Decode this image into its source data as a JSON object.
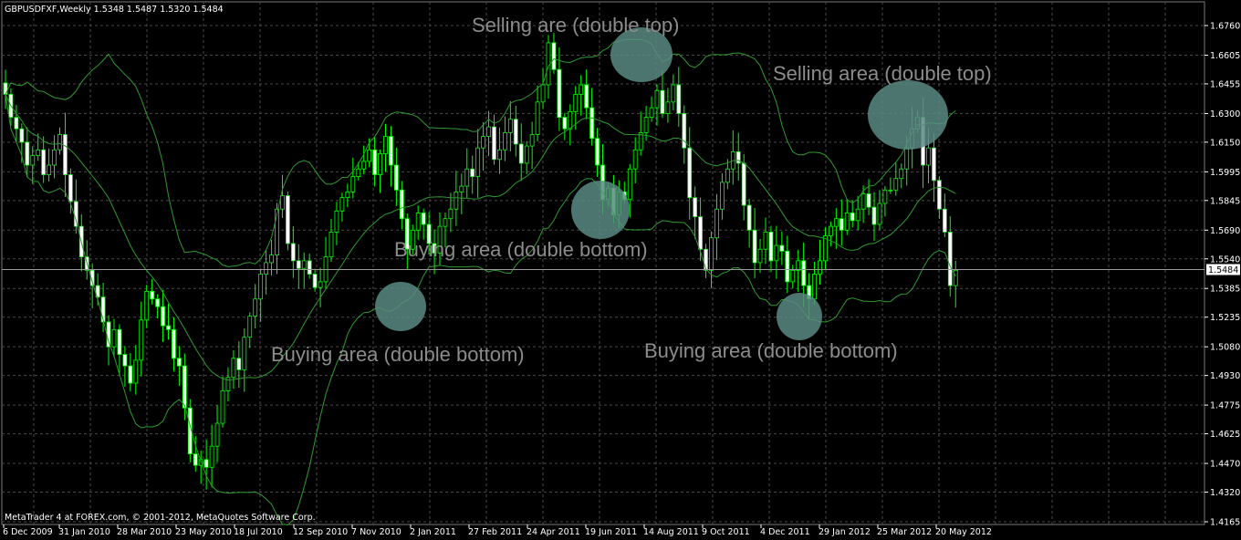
{
  "header": {
    "symbol": "GBPUSDFXF,Weekly",
    "ohlc": "1.5348 1.5487 1.5320 1.5484"
  },
  "footer": {
    "copyright": "MetaTrader 4 at FOREX.com, © 2001-2012, MetaQuotes Software Corp."
  },
  "colors": {
    "background": "#000000",
    "grid": "#4a4a4a",
    "candle": "#00ff00",
    "candle_body_up": "#000000",
    "candle_body_down": "#ffffff",
    "bands": "#2f9a2f",
    "annotation_text": "#8c8c8c",
    "highlight": "#5a8a82"
  },
  "chart_data": {
    "type": "candlestick",
    "title": "GBPUSDFXF,Weekly",
    "indicator": "bollinger-bands",
    "current_price": "1.5484",
    "ylim": [
      1.4165,
      1.684
    ],
    "y_ticks": [
      "1.6760",
      "1.6605",
      "1.6455",
      "1.6300",
      "1.6150",
      "1.5995",
      "1.5845",
      "1.5690",
      "1.5540",
      "1.5385",
      "1.5235",
      "1.5080",
      "1.4930",
      "1.4775",
      "1.4625",
      "1.4470",
      "1.4320",
      "1.4165"
    ],
    "x_ticks": [
      "6 Dec 2009",
      "31 Jan 2010",
      "28 Mar 2010",
      "23 May 2010",
      "18 Jul 2010",
      "12 Sep 2010",
      "7 Nov 2010",
      "2 Jan 2011",
      "27 Feb 2011",
      "24 Apr 2011",
      "19 Jun 2011",
      "14 Aug 2011",
      "9 Oct 2011",
      "4 Dec 2011",
      "29 Jan 2012",
      "25 Mar 2012",
      "20 May 2012"
    ],
    "grid": true,
    "closes": [
      1.64,
      1.628,
      1.622,
      1.615,
      1.603,
      1.608,
      1.611,
      1.598,
      1.603,
      1.611,
      1.619,
      1.598,
      1.584,
      1.571,
      1.555,
      1.548,
      1.54,
      1.534,
      1.521,
      1.508,
      1.517,
      1.504,
      1.498,
      1.489,
      1.501,
      1.522,
      1.537,
      1.533,
      1.529,
      1.519,
      1.517,
      1.502,
      1.498,
      1.476,
      1.452,
      1.446,
      1.449,
      1.445,
      1.456,
      1.468,
      1.485,
      1.492,
      1.502,
      1.496,
      1.513,
      1.524,
      1.533,
      1.546,
      1.552,
      1.556,
      1.58,
      1.587,
      1.562,
      1.553,
      1.549,
      1.553,
      1.546,
      1.539,
      1.542,
      1.555,
      1.568,
      1.579,
      1.586,
      1.589,
      1.597,
      1.601,
      1.605,
      1.611,
      1.598,
      1.609,
      1.618,
      1.603,
      1.59,
      1.575,
      1.559,
      1.569,
      1.578,
      1.572,
      1.562,
      1.557,
      1.571,
      1.575,
      1.58,
      1.589,
      1.592,
      1.601,
      1.597,
      1.612,
      1.618,
      1.623,
      1.606,
      1.611,
      1.62,
      1.627,
      1.614,
      1.604,
      1.613,
      1.619,
      1.636,
      1.645,
      1.667,
      1.653,
      1.628,
      1.622,
      1.631,
      1.64,
      1.645,
      1.633,
      1.617,
      1.603,
      1.585,
      1.591,
      1.577,
      1.589,
      1.585,
      1.601,
      1.611,
      1.62,
      1.628,
      1.633,
      1.642,
      1.63,
      1.636,
      1.645,
      1.63,
      1.612,
      1.586,
      1.576,
      1.559,
      1.548,
      1.565,
      1.58,
      1.594,
      1.601,
      1.61,
      1.604,
      1.582,
      1.569,
      1.552,
      1.559,
      1.568,
      1.553,
      1.561,
      1.558,
      1.542,
      1.548,
      1.553,
      1.54,
      1.533,
      1.546,
      1.553,
      1.566,
      1.571,
      1.575,
      1.569,
      1.578,
      1.574,
      1.58,
      1.588,
      1.581,
      1.572,
      1.583,
      1.59,
      1.59,
      1.596,
      1.601,
      1.612,
      1.622,
      1.628,
      1.603,
      1.612,
      1.595,
      1.58,
      1.568,
      1.54,
      1.548
    ]
  },
  "annotations": [
    {
      "label": "Selling are (double top)"
    },
    {
      "label": "Selling area (double top)"
    },
    {
      "label": "Buying area (double bottom)"
    },
    {
      "label": "Buying area (double bottom)"
    },
    {
      "label": "Buying area (double bottom)"
    }
  ]
}
